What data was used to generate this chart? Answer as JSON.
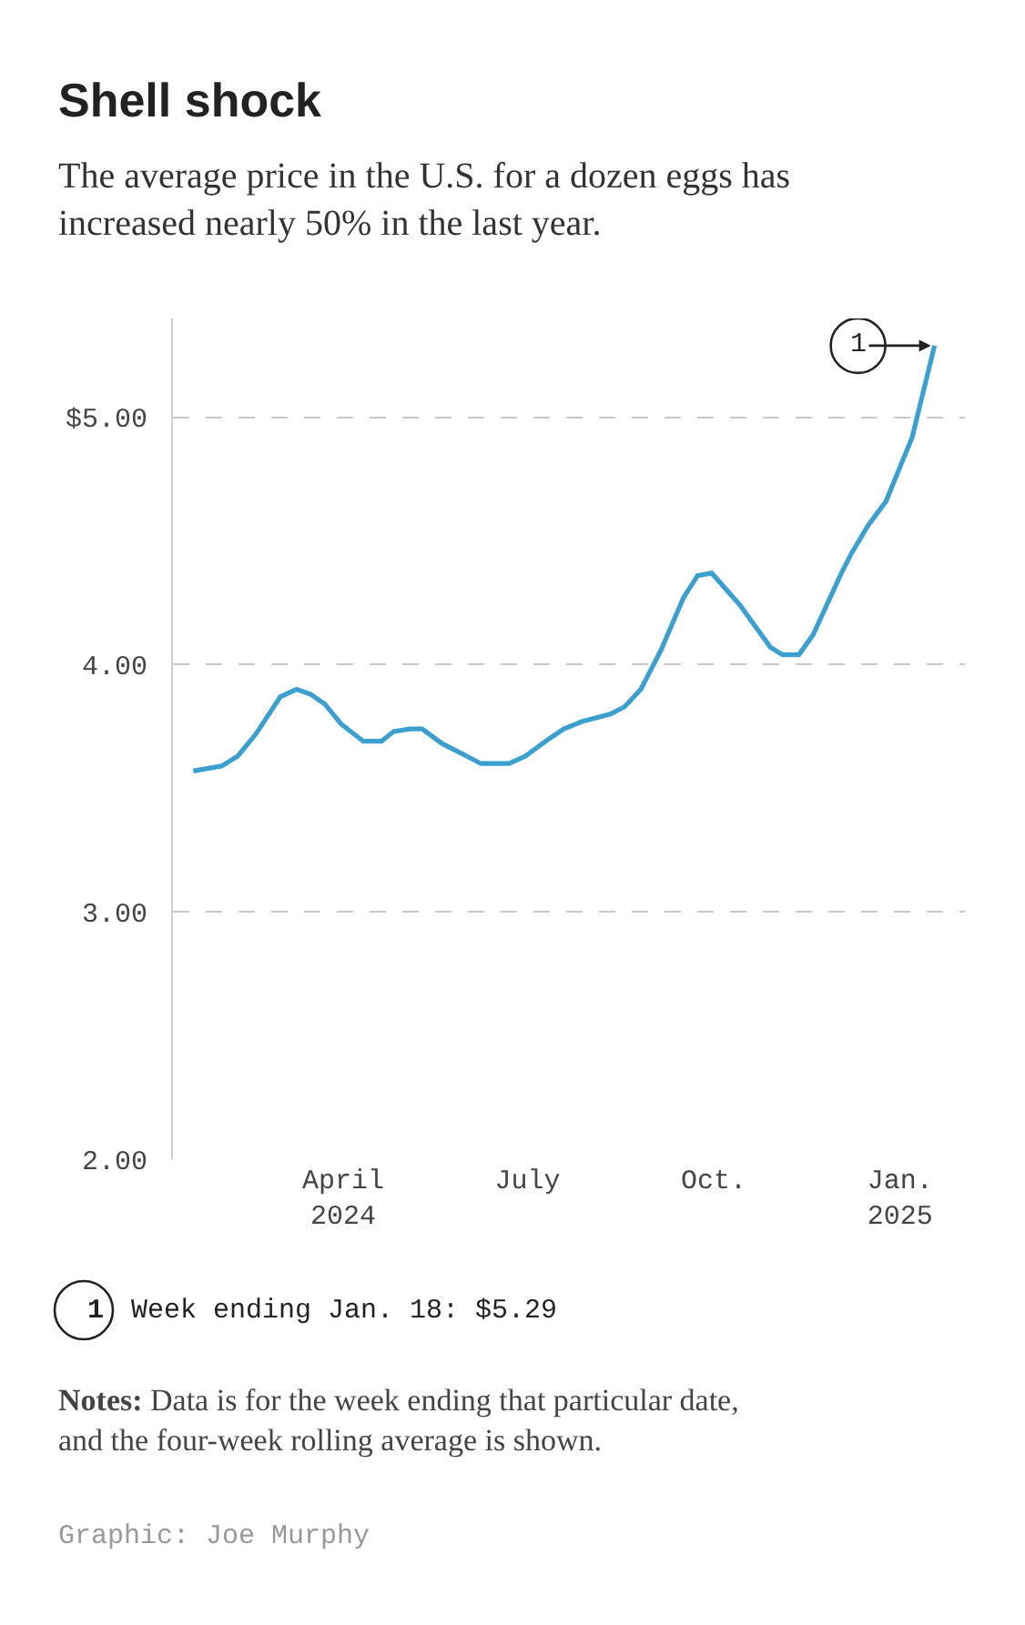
{
  "chart_data": {
    "type": "line",
    "title": "Shell shock",
    "subtitle": "The average price in the U.S. for a dozen eggs has increased nearly 50% in the last year.",
    "x": [
      "2024-01-18",
      "2024-02-01",
      "2024-02-09",
      "2024-02-18",
      "2024-03-01",
      "2024-03-09",
      "2024-03-16",
      "2024-03-23",
      "2024-03-31",
      "2024-04-11",
      "2024-04-20",
      "2024-04-26",
      "2024-05-04",
      "2024-05-10",
      "2024-05-20",
      "2024-06-01",
      "2024-06-08",
      "2024-06-22",
      "2024-06-30",
      "2024-07-10",
      "2024-07-19",
      "2024-07-28",
      "2024-08-11",
      "2024-08-18",
      "2024-08-26",
      "2024-09-05",
      "2024-09-16",
      "2024-09-23",
      "2024-09-30",
      "2024-10-14",
      "2024-10-29",
      "2024-11-04",
      "2024-11-12",
      "2024-11-19",
      "2024-12-03",
      "2024-12-08",
      "2024-12-16",
      "2024-12-25",
      "2025-01-07",
      "2025-01-18"
    ],
    "series": [
      {
        "color": "#3b9fcf",
        "values": [
          3.57,
          3.59,
          3.63,
          3.72,
          3.87,
          3.9,
          3.88,
          3.84,
          3.76,
          3.69,
          3.69,
          3.73,
          3.74,
          3.74,
          3.68,
          3.63,
          3.6,
          3.6,
          3.63,
          3.69,
          3.74,
          3.77,
          3.8,
          3.83,
          3.9,
          4.06,
          4.27,
          4.36,
          4.37,
          4.24,
          4.07,
          4.04,
          4.04,
          4.12,
          4.37,
          4.45,
          4.56,
          4.66,
          4.92,
          5.29
        ]
      }
    ],
    "xlim": [
      "2024-01-08",
      "2025-02-02"
    ],
    "xticks": [
      {
        "value": "2024-04-01",
        "label": "April\n2024"
      },
      {
        "value": "2024-07-01",
        "label": "July"
      },
      {
        "value": "2024-10-01",
        "label": "Oct."
      },
      {
        "value": "2025-01-01",
        "label": "Jan.\n2025"
      }
    ],
    "ylim": [
      2,
      5.4
    ],
    "yticks": [
      {
        "value": 2,
        "label": "2.00"
      },
      {
        "value": 3,
        "label": "3.00"
      },
      {
        "value": 4,
        "label": "4.00"
      },
      {
        "value": 5,
        "label": "$5.00"
      }
    ],
    "grid": "y",
    "line_style": "solid",
    "marker": "none",
    "annotations": [
      {
        "text": "1",
        "x": "2025-01-18",
        "y": 5.29
      },
      "Week ending Jan. 18: $5.29",
      "Notes: Data is for the week ending that particular date, and the four-week rolling average is shown.",
      "Graphic: Joe Murphy"
    ]
  }
}
